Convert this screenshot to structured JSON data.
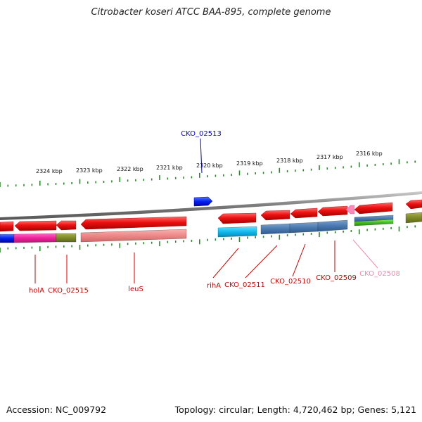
{
  "title": "Citrobacter koseri ATCC BAA-895, complete genome",
  "footer": {
    "accession": "Accession: NC_009792",
    "topology": "Topology: circular; Length: 4,720,462 bp; Genes: 5,121"
  },
  "colors": {
    "cds": "#ee1111",
    "backbone": "#8a8a8a",
    "tick": "#2a8a2a",
    "label_red": "#cc0000",
    "label_blue": "#0000cc",
    "label_pink": "#ee88aa"
  },
  "scale_labels": [
    "2324 kbp",
    "2323 kbp",
    "2322 kbp",
    "2321 kbp",
    "2320 kbp",
    "2319 kbp",
    "2318 kbp",
    "2317 kbp",
    "2316 kbp"
  ],
  "gene_labels": [
    {
      "name": "holA",
      "color": "red"
    },
    {
      "name": "CKO_02515",
      "color": "red"
    },
    {
      "name": "leuS",
      "color": "red"
    },
    {
      "name": "rihA",
      "color": "red"
    },
    {
      "name": "CKO_02511",
      "color": "red"
    },
    {
      "name": "CKO_02510",
      "color": "red"
    },
    {
      "name": "CKO_02509",
      "color": "red"
    },
    {
      "name": "CKO_02508",
      "color": "pink"
    },
    {
      "name": "CKO_02513",
      "color": "blue"
    }
  ]
}
